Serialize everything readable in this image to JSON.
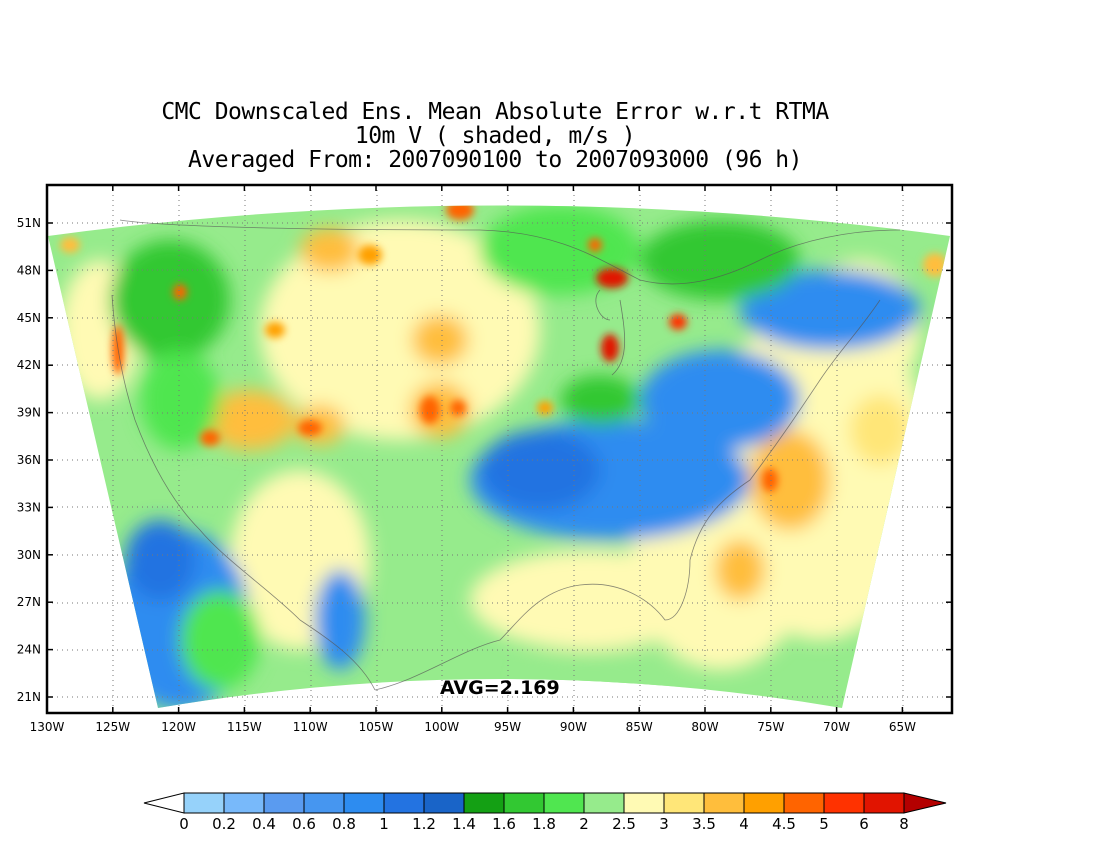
{
  "title": {
    "line1": "CMC Downscaled Ens. Mean Absolute Error w.r.t RTMA",
    "line2": "10m V ( shaded, m/s )",
    "line3": "Averaged From: 2007090100 to 2007093000 (96 h)"
  },
  "map": {
    "lat_labels": [
      "51N",
      "48N",
      "45N",
      "42N",
      "39N",
      "36N",
      "33N",
      "30N",
      "27N",
      "24N",
      "21N"
    ],
    "lon_labels": [
      "130W",
      "125W",
      "120W",
      "115W",
      "110W",
      "105W",
      "100W",
      "95W",
      "90W",
      "85W",
      "80W",
      "75W",
      "70W",
      "65W"
    ],
    "avg_label": "AVG=2.169",
    "lat_range": [
      19.5,
      53
    ],
    "lon_range": [
      -130,
      -61.5
    ],
    "grid": true
  },
  "colorbar": {
    "labels": [
      "0",
      "0.2",
      "0.4",
      "0.6",
      "0.8",
      "1",
      "1.2",
      "1.4",
      "1.6",
      "1.8",
      "2",
      "2.5",
      "3",
      "3.5",
      "4",
      "4.5",
      "5",
      "6",
      "8"
    ],
    "colors": [
      "#96d2fa",
      "#78b9fa",
      "#5a9bf0",
      "#4696f0",
      "#2d8cf0",
      "#2373e1",
      "#1964c8",
      "#14a014",
      "#32c832",
      "#50e650",
      "#96eb8c",
      "#fffab4",
      "#ffe678",
      "#ffbe3c",
      "#ffa000",
      "#ff6400",
      "#ff3200",
      "#e11400",
      "#b40000"
    ],
    "left_arrow_color": "#ffffff"
  }
}
